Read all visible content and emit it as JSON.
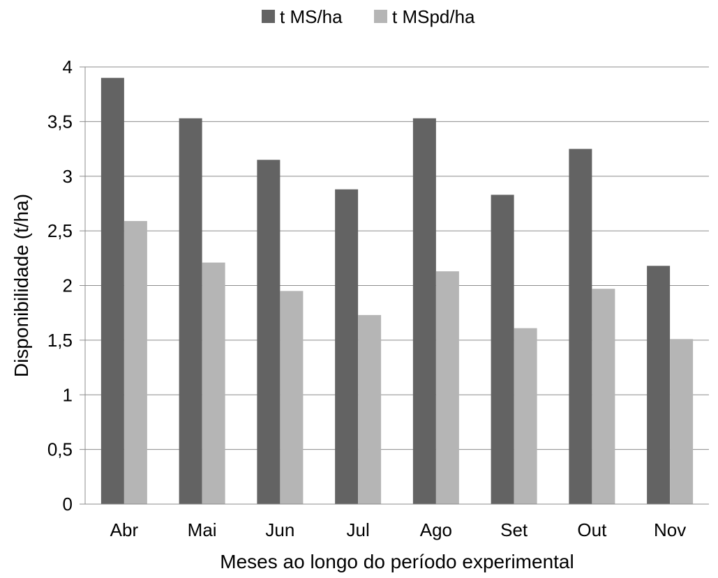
{
  "chart_data": {
    "type": "bar",
    "title": "",
    "xlabel": "Meses ao longo do período experimental",
    "ylabel": "Disponibilidade (t/ha)",
    "categories": [
      "Abr",
      "Mai",
      "Jun",
      "Jul",
      "Ago",
      "Set",
      "Out",
      "Nov"
    ],
    "series": [
      {
        "name": "t MS/ha",
        "color": "#636363",
        "values": [
          3.9,
          3.53,
          3.15,
          2.88,
          3.53,
          2.83,
          3.25,
          2.18
        ]
      },
      {
        "name": "t MSpd/ha",
        "color": "#b5b5b5",
        "values": [
          2.59,
          2.21,
          1.95,
          1.73,
          2.13,
          1.61,
          1.97,
          1.51
        ]
      }
    ],
    "ylim": [
      0,
      4
    ],
    "yticks": [
      0,
      0.5,
      1,
      1.5,
      2,
      2.5,
      3,
      3.5,
      4
    ],
    "ytick_labels": [
      "0",
      "0,5",
      "1",
      "1,5",
      "2",
      "2,5",
      "3",
      "3,5",
      "4"
    ],
    "grid": true,
    "legend_position": "top-center"
  }
}
